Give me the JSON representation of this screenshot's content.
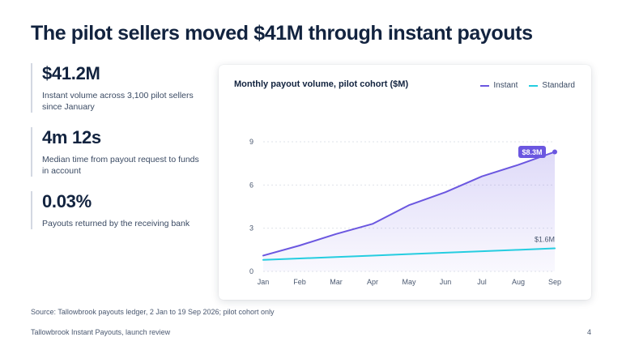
{
  "slide": {
    "title": "The pilot sellers moved $41M through instant payouts",
    "source": "Source: Tallowbrook payouts ledger, 2 Jan to 19 Sep 2026; pilot cohort only",
    "footer": "Tallowbrook Instant Payouts, launch review",
    "page_number": "4"
  },
  "stats": [
    {
      "value": "$41.2M",
      "description": "Instant volume across 3,100 pilot sellers since January"
    },
    {
      "value": "4m 12s",
      "description": "Median time from payout request to funds in account"
    },
    {
      "value": "0.03%",
      "description": "Payouts returned by the receiving bank"
    }
  ],
  "colors": {
    "instant": "#6b57e0",
    "standard": "#25cde0",
    "grid": "#dfe3ea",
    "axis_text": "#4a5870"
  },
  "chart_data": {
    "type": "line",
    "title": "Monthly payout volume, pilot cohort ($M)",
    "categories": [
      "Jan",
      "Feb",
      "Mar",
      "Apr",
      "May",
      "Jun",
      "Jul",
      "Aug",
      "Sep"
    ],
    "yticks": [
      "0",
      "3",
      "6",
      "9"
    ],
    "ylim": [
      0,
      9
    ],
    "grid": true,
    "legend_position": "top-right",
    "series": [
      {
        "name": "Instant",
        "values": [
          1.1,
          1.8,
          2.6,
          3.3,
          4.6,
          5.5,
          6.6,
          7.4,
          8.3
        ],
        "end_label": "$8.3M",
        "area_fill": true
      },
      {
        "name": "Standard",
        "values": [
          0.8,
          0.9,
          1.0,
          1.1,
          1.2,
          1.3,
          1.4,
          1.5,
          1.6
        ],
        "end_label": "$1.6M"
      }
    ]
  }
}
